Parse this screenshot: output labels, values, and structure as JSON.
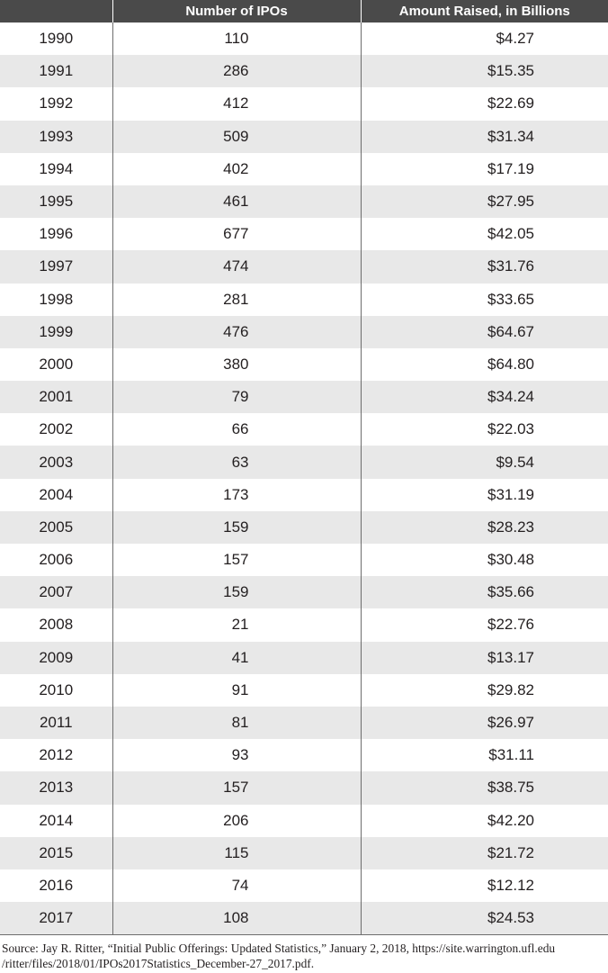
{
  "table": {
    "headers": [
      "",
      "Number of IPOs",
      "Amount Raised, in Billions"
    ],
    "rows": [
      {
        "year": "1990",
        "ipos": "110",
        "amount": "$4.27"
      },
      {
        "year": "1991",
        "ipos": "286",
        "amount": "$15.35"
      },
      {
        "year": "1992",
        "ipos": "412",
        "amount": "$22.69"
      },
      {
        "year": "1993",
        "ipos": "509",
        "amount": "$31.34"
      },
      {
        "year": "1994",
        "ipos": "402",
        "amount": "$17.19"
      },
      {
        "year": "1995",
        "ipos": "461",
        "amount": "$27.95"
      },
      {
        "year": "1996",
        "ipos": "677",
        "amount": "$42.05"
      },
      {
        "year": "1997",
        "ipos": "474",
        "amount": "$31.76"
      },
      {
        "year": "1998",
        "ipos": "281",
        "amount": "$33.65"
      },
      {
        "year": "1999",
        "ipos": "476",
        "amount": "$64.67"
      },
      {
        "year": "2000",
        "ipos": "380",
        "amount": "$64.80"
      },
      {
        "year": "2001",
        "ipos": "79",
        "amount": "$34.24"
      },
      {
        "year": "2002",
        "ipos": "66",
        "amount": "$22.03"
      },
      {
        "year": "2003",
        "ipos": "63",
        "amount": "$9.54"
      },
      {
        "year": "2004",
        "ipos": "173",
        "amount": "$31.19"
      },
      {
        "year": "2005",
        "ipos": "159",
        "amount": "$28.23"
      },
      {
        "year": "2006",
        "ipos": "157",
        "amount": "$30.48"
      },
      {
        "year": "2007",
        "ipos": "159",
        "amount": "$35.66"
      },
      {
        "year": "2008",
        "ipos": "21",
        "amount": "$22.76"
      },
      {
        "year": "2009",
        "ipos": "41",
        "amount": "$13.17"
      },
      {
        "year": "2010",
        "ipos": "91",
        "amount": "$29.82"
      },
      {
        "year": "2011",
        "ipos": "81",
        "amount": "$26.97"
      },
      {
        "year": "2012",
        "ipos": "93",
        "amount": "$31.11"
      },
      {
        "year": "2013",
        "ipos": "157",
        "amount": "$38.75"
      },
      {
        "year": "2014",
        "ipos": "206",
        "amount": "$42.20"
      },
      {
        "year": "2015",
        "ipos": "115",
        "amount": "$21.72"
      },
      {
        "year": "2016",
        "ipos": "74",
        "amount": "$12.12"
      },
      {
        "year": "2017",
        "ipos": "108",
        "amount": "$24.53"
      }
    ]
  },
  "source": {
    "line1": "Source: Jay R. Ritter, “Initial Public Offerings: Updated Statistics,” January 2, 2018, https://site.warrington.ufl.edu",
    "line2": "/ritter/files/2018/01/IPOs2017Statistics_December-27_2017.pdf."
  }
}
